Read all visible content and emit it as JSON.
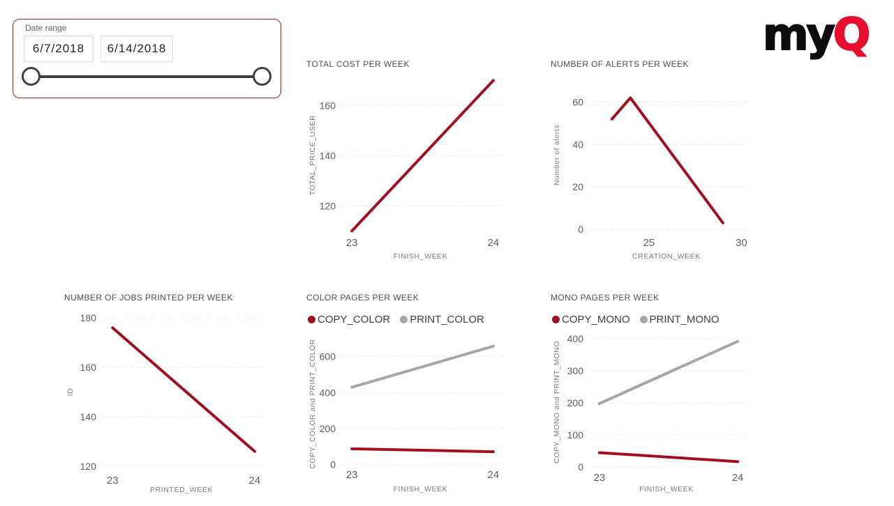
{
  "slicer": {
    "label": "Date range",
    "start_date": "6/7/2018",
    "end_date": "6/14/2018"
  },
  "logo": {
    "text_my": "my",
    "text_q": "Q",
    "q_color": "#e8112d"
  },
  "colors": {
    "series_red": "#a2101f",
    "series_gray": "#a6a6a6",
    "slicer_border": "#a81e26"
  },
  "chart_data": [
    {
      "type": "line",
      "title": "TOTAL COST PER WEEK",
      "xlabel": "FINISH_WEEK",
      "ylabel": "TOTAL_PRICE_USER",
      "x_ticks": [
        23,
        24
      ],
      "y_ticks": [
        120,
        140,
        160
      ],
      "x_range": [
        22.93,
        24.04
      ],
      "y_range": [
        109,
        171.5
      ],
      "grid": "horizontal-dotted",
      "legend_position": "none",
      "series": [
        {
          "name": "TOTAL_PRICE_USER",
          "color": "#a2101f",
          "x": [
            23,
            24
          ],
          "y": [
            110,
            170
          ]
        }
      ]
    },
    {
      "type": "line",
      "title": "NUMBER OF ALERTS PER WEEK",
      "xlabel": "CREATION_WEEK",
      "ylabel": "Number of alerts",
      "x_ticks": [
        25,
        30
      ],
      "y_ticks": [
        0,
        20,
        40,
        60
      ],
      "x_range": [
        21.8,
        30.1
      ],
      "y_range": [
        -2,
        72
      ],
      "grid": "horizontal-dotted",
      "legend_position": "none",
      "series": [
        {
          "name": "Number of alerts",
          "color": "#a2101f",
          "x": [
            23,
            24,
            29
          ],
          "y": [
            52,
            62,
            3
          ]
        }
      ]
    },
    {
      "type": "line",
      "title": "NUMBER OF JOBS PRINTED PER WEEK",
      "xlabel": "PRINTED_WEEK",
      "ylabel": "ID",
      "x_ticks": [
        23,
        24
      ],
      "y_ticks": [
        120,
        140,
        160,
        180
      ],
      "x_range": [
        22.93,
        24.04
      ],
      "y_range": [
        118,
        182
      ],
      "grid": "horizontal-dotted",
      "legend_position": "none",
      "series": [
        {
          "name": "ID",
          "color": "#a2101f",
          "x": [
            23,
            24
          ],
          "y": [
            176,
            126
          ]
        }
      ]
    },
    {
      "type": "line",
      "title": "COLOR PAGES PER WEEK",
      "xlabel": "FINISH_WEEK",
      "ylabel": "COPY_COLOR and PRINT_COLOR",
      "x_ticks": [
        23,
        24
      ],
      "y_ticks": [
        0,
        200,
        400,
        600
      ],
      "x_range": [
        22.93,
        24.04
      ],
      "y_range": [
        -5,
        680
      ],
      "grid": "horizontal-dotted",
      "legend_position": "top",
      "series": [
        {
          "name": "COPY_COLOR",
          "color": "#a2101f",
          "x": [
            23,
            24
          ],
          "y": [
            88,
            72
          ]
        },
        {
          "name": "PRINT_COLOR",
          "color": "#a6a6a6",
          "x": [
            23,
            24
          ],
          "y": [
            430,
            658
          ]
        }
      ]
    },
    {
      "type": "line",
      "title": "MONO PAGES PER WEEK",
      "xlabel": "FINISH_WEEK",
      "ylabel": "COPY_MONO and PRINT_MONO",
      "x_ticks": [
        23,
        24
      ],
      "y_ticks": [
        0,
        100,
        200,
        300,
        400
      ],
      "x_range": [
        22.93,
        24.04
      ],
      "y_range": [
        -4,
        409
      ],
      "grid": "horizontal-dotted",
      "legend_position": "top",
      "series": [
        {
          "name": "COPY_MONO",
          "color": "#a2101f",
          "x": [
            23,
            24
          ],
          "y": [
            45,
            17
          ]
        },
        {
          "name": "PRINT_MONO",
          "color": "#a6a6a6",
          "x": [
            23,
            24
          ],
          "y": [
            198,
            392
          ]
        }
      ]
    }
  ]
}
